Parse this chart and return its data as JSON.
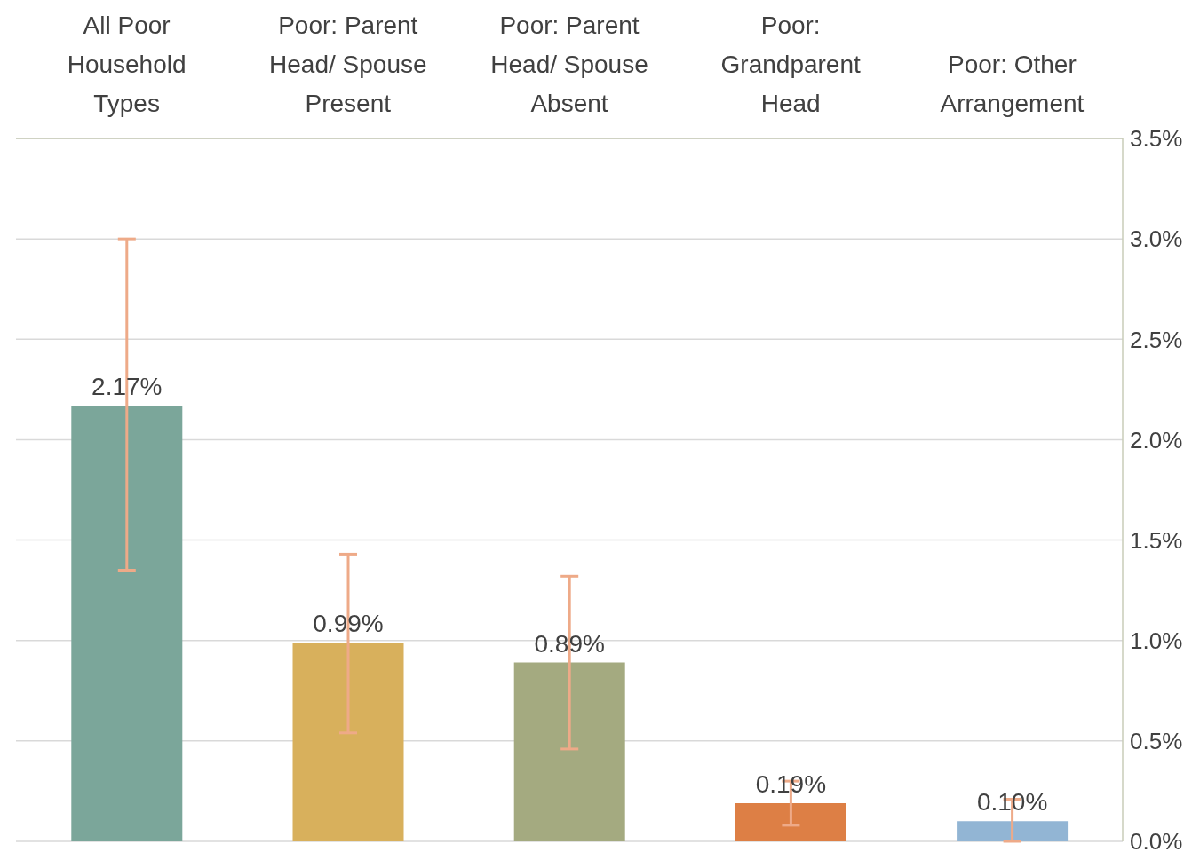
{
  "chart_data": {
    "type": "bar",
    "categories": [
      "All Poor Household Types",
      "Poor: Parent Head/ Spouse Present",
      "Poor: Parent Head/ Spouse Absent",
      "Poor: Grandparent Head",
      "Poor: Other Arrangement"
    ],
    "values": [
      2.17,
      0.99,
      0.89,
      0.19,
      0.1
    ],
    "colors": [
      "#7ba69a",
      "#d8b05c",
      "#a4aa80",
      "#dd7f45",
      "#92b5d4"
    ],
    "errors": [
      [
        1.35,
        3.0
      ],
      [
        0.54,
        1.43
      ],
      [
        0.46,
        1.32
      ],
      [
        0.08,
        0.3
      ],
      [
        0,
        0.21
      ]
    ],
    "value_labels": [
      "2.17%",
      "0.99%",
      "0.89%",
      "0.19%",
      "0.10%"
    ],
    "ylim": [
      0,
      3.5
    ],
    "yticks": [
      {
        "value": 0,
        "label": "0.0%"
      },
      {
        "value": 0.5,
        "label": "0.5%"
      },
      {
        "value": 1,
        "label": "1.0%"
      },
      {
        "value": 1.5,
        "label": "1.5%"
      },
      {
        "value": 2,
        "label": "2.0%"
      },
      {
        "value": 2.5,
        "label": "2.5%"
      },
      {
        "value": 3,
        "label": "3.0%"
      },
      {
        "value": 3.5,
        "label": "3.5%"
      }
    ],
    "grid": "y"
  }
}
